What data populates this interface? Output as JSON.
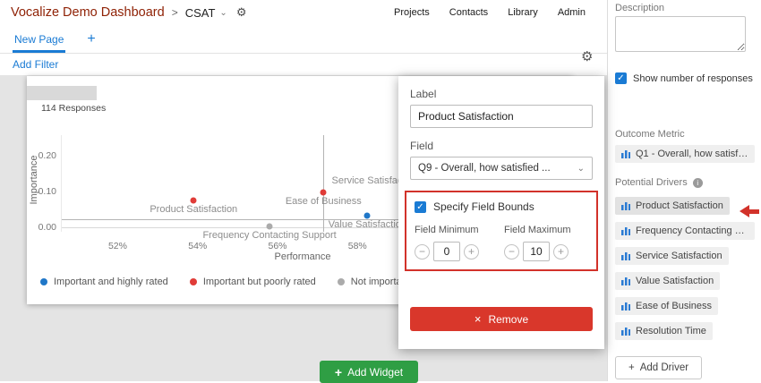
{
  "colors": {
    "brand": "#8f2206",
    "accent": "#1a7bd4",
    "green": "#2f9e44",
    "danger": "#d9372b",
    "annotation": "#d2322a"
  },
  "icons": {
    "gear": "⚙",
    "caret_down": "⌄",
    "check": "✓",
    "close": "×",
    "plus": "+",
    "minus": "−",
    "info": "i"
  },
  "header": {
    "brand": "Vocalize Demo Dashboard",
    "separator": ">",
    "dashboard_name": "CSAT",
    "nav": [
      "Projects",
      "Contacts",
      "Library",
      "Admin"
    ]
  },
  "tabs": {
    "new_page": "New Page",
    "add_tab": "+"
  },
  "filter_bar": {
    "add_filter": "Add Filter"
  },
  "canvas": {
    "add_widget": "Add Widget"
  },
  "chart_widget": {
    "responses": "114 Responses"
  },
  "chart_data": {
    "type": "scatter",
    "xlabel": "Performance",
    "ylabel": "Importance",
    "xlim": [
      50.6,
      62.7
    ],
    "ylim": [
      -0.012,
      0.256
    ],
    "x_ticks": [
      {
        "value": 52,
        "label": "52%"
      },
      {
        "value": 54,
        "label": "54%"
      },
      {
        "value": 56,
        "label": "56%"
      },
      {
        "value": 58,
        "label": "58%"
      }
    ],
    "y_ticks": [
      {
        "value": 0.2,
        "label": "0.20"
      },
      {
        "value": 0.1,
        "label": "0.10"
      },
      {
        "value": 0.0,
        "label": "0.00"
      }
    ],
    "quadrant_divider": {
      "x": 57.15,
      "y": 0.022
    },
    "series_colors": {
      "important-highly-rated": "#2077c8",
      "important-poorly-rated": "#e03c38",
      "not-important-poorly-rated": "#ababab"
    },
    "points": [
      {
        "label": "Product Satisfaction",
        "x": 53.9,
        "y": 0.074,
        "series": "important-poorly-rated",
        "label_pos": "below"
      },
      {
        "label": "Ease of Business",
        "x": 57.15,
        "y": 0.098,
        "series": "important-poorly-rated",
        "label_pos": "below"
      },
      {
        "label": "Service Satisfaction",
        "x": 59.7,
        "y": 0.127,
        "series": "important-highly-rated",
        "label_pos": "left"
      },
      {
        "label": "Value Satisfaction",
        "x": 58.25,
        "y": 0.032,
        "series": "important-highly-rated",
        "label_pos": "below"
      },
      {
        "label": "Frequency Contacting Support",
        "x": 55.8,
        "y": 0.002,
        "series": "not-important-poorly-rated",
        "label_pos": "below"
      }
    ],
    "legend": [
      {
        "label": "Important and highly rated",
        "series": "important-highly-rated"
      },
      {
        "label": "Important but poorly rated",
        "series": "important-poorly-rated"
      },
      {
        "label": "Not important and poorly rated",
        "series": "not-important-poorly-rated"
      }
    ],
    "legend_position": "bottom"
  },
  "modal": {
    "label_label": "Label",
    "label_value": "Product Satisfaction",
    "field_label": "Field",
    "field_value": "Q9 - Overall, how satisfied ...",
    "bounds_checkbox": "Specify Field Bounds",
    "bounds_checked": true,
    "min_label": "Field Minimum",
    "max_label": "Field Maximum",
    "min_value": "0",
    "max_value": "10",
    "remove": "Remove"
  },
  "sidebar": {
    "description_label": "Description",
    "description_value": "",
    "show_responses": "Show number of responses",
    "show_responses_checked": true,
    "outcome_metric": {
      "title": "Outcome Metric",
      "items": [
        "Q1 - Overall, how satisfie..."
      ]
    },
    "potential_drivers": {
      "title": "Potential Drivers",
      "items": [
        "Product Satisfaction",
        "Frequency Contacting Su...",
        "Service Satisfaction",
        "Value Satisfaction",
        "Ease of Business",
        "Resolution Time"
      ],
      "selected": "Product Satisfaction",
      "add_driver": "Add Driver"
    }
  },
  "annotations": {
    "highlight_box_target": "Specify Field Bounds",
    "arrow_target": "Product Satisfaction"
  }
}
